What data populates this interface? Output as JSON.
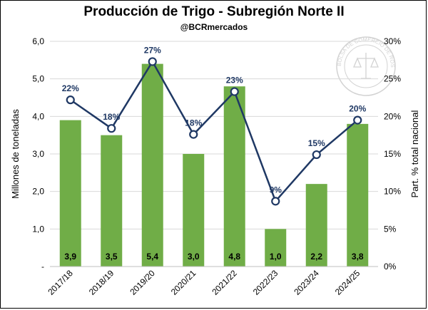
{
  "title": "Producción de Trigo - Subregión Norte II",
  "subtitle": "@BCRmercados",
  "watermark_text": "BOLSA DE COMERCIO DE ROSARIO",
  "colors": {
    "bar": "#70ad47",
    "line": "#1f3864",
    "marker_fill": "#ffffff",
    "grid": "#d9d9d9"
  },
  "chart_data": {
    "type": "bar",
    "categories": [
      "2017/18",
      "2018/19",
      "2019/20",
      "2020/21",
      "2021/22",
      "2022/23",
      "2023/24",
      "2024/25"
    ],
    "series": [
      {
        "type": "bar",
        "axis": "left",
        "values": [
          3.9,
          3.5,
          5.4,
          3.0,
          4.8,
          1.0,
          2.2,
          3.8
        ],
        "labels": [
          "3,9",
          "3,5",
          "5,4",
          "3,0",
          "4,8",
          "1,0",
          "2,2",
          "3,8"
        ]
      },
      {
        "type": "line",
        "axis": "right",
        "values": [
          22.2,
          18.4,
          27.3,
          17.6,
          23.3,
          8.7,
          14.9,
          19.5
        ],
        "labels": [
          "22%",
          "18%",
          "27%",
          "18%",
          "23%",
          "9%",
          "15%",
          "20%"
        ]
      }
    ],
    "ylabel": "Millones de toneladas",
    "y2label": "Part. % total nacional",
    "ylim": [
      0,
      6
    ],
    "y2lim": [
      0,
      30
    ],
    "yticks": [
      "-",
      "1,0",
      "2,0",
      "3,0",
      "4,0",
      "5,0",
      "6,0"
    ],
    "y2ticks": [
      "0%",
      "5%",
      "10%",
      "15%",
      "20%",
      "25%",
      "30%"
    ],
    "grid": true
  }
}
